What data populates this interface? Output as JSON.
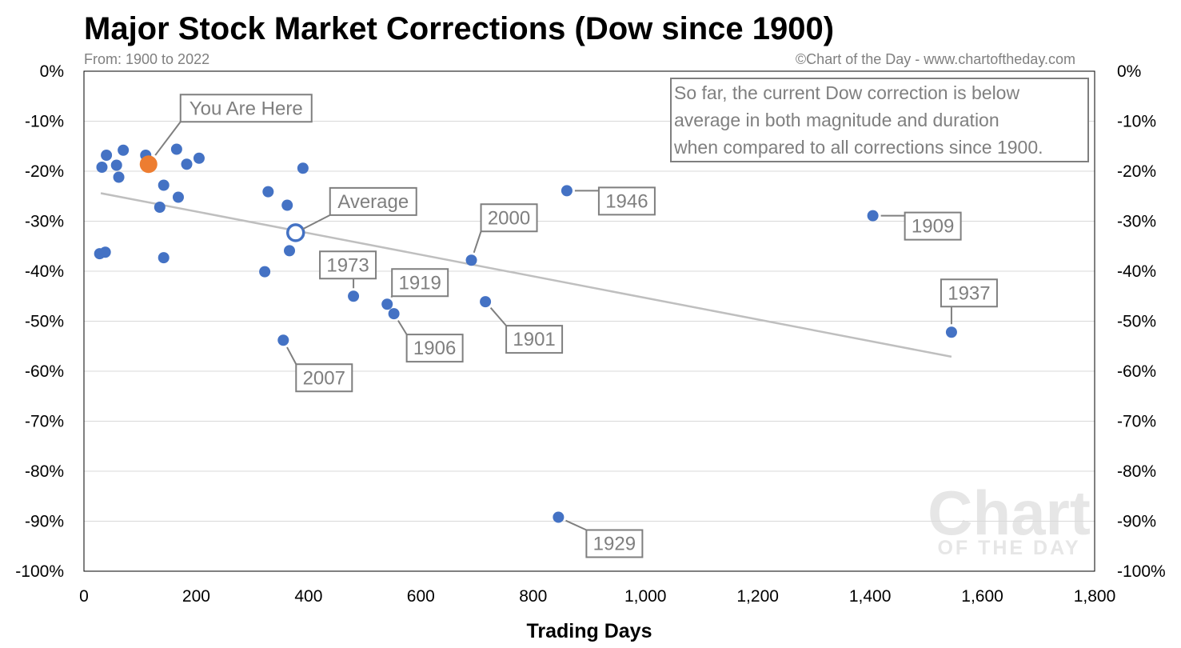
{
  "chart_data": {
    "type": "scatter",
    "title": "Major Stock Market Corrections (Dow since 1900)",
    "subtitle": "From: 1900 to 2022",
    "source": "©Chart of the Day - www.chartoftheday.com",
    "xlabel": "Trading Days",
    "ylabel": "",
    "xlim": [
      0,
      1800
    ],
    "ylim": [
      -100,
      0
    ],
    "x_ticks": [
      0,
      200,
      400,
      600,
      800,
      1000,
      1200,
      1400,
      1600,
      1800
    ],
    "x_tick_labels": [
      "0",
      "200",
      "400",
      "600",
      "800",
      "1,000",
      "1,200",
      "1,400",
      "1,600",
      "1,800"
    ],
    "y_ticks": [
      0,
      -10,
      -20,
      -30,
      -40,
      -50,
      -60,
      -70,
      -80,
      -90,
      -100
    ],
    "y_tick_labels": [
      "0%",
      "-10%",
      "-20%",
      "-30%",
      "-40%",
      "-50%",
      "-60%",
      "-70%",
      "-80%",
      "-90%",
      "-100%"
    ],
    "grid": "horizontal",
    "colors": {
      "points": "#4472c4",
      "current": "#ed7d31",
      "trendline": "#bfbfbf",
      "callout": "#7f7f7f"
    },
    "points": [
      {
        "x": 28,
        "y": -36.5
      },
      {
        "x": 32,
        "y": -19.2
      },
      {
        "x": 38,
        "y": -36.2
      },
      {
        "x": 40,
        "y": -16.8
      },
      {
        "x": 58,
        "y": -18.8
      },
      {
        "x": 62,
        "y": -21.2
      },
      {
        "x": 70,
        "y": -15.8
      },
      {
        "x": 110,
        "y": -16.8
      },
      {
        "x": 135,
        "y": -27.2
      },
      {
        "x": 142,
        "y": -22.8
      },
      {
        "x": 142,
        "y": -37.3
      },
      {
        "x": 165,
        "y": -15.6
      },
      {
        "x": 168,
        "y": -25.2
      },
      {
        "x": 183,
        "y": -18.6
      },
      {
        "x": 205,
        "y": -17.4
      },
      {
        "x": 322,
        "y": -40.1
      },
      {
        "x": 328,
        "y": -24.1
      },
      {
        "x": 355,
        "y": -53.8,
        "label": "2007"
      },
      {
        "x": 362,
        "y": -26.8
      },
      {
        "x": 366,
        "y": -35.9
      },
      {
        "x": 390,
        "y": -19.4
      },
      {
        "x": 480,
        "y": -45.0,
        "label": "1973"
      },
      {
        "x": 540,
        "y": -46.6,
        "label": "1919"
      },
      {
        "x": 552,
        "y": -48.5,
        "label": "1906"
      },
      {
        "x": 690,
        "y": -37.8,
        "label": "2000"
      },
      {
        "x": 715,
        "y": -46.1,
        "label": "1901"
      },
      {
        "x": 845,
        "y": -89.2,
        "label": "1929"
      },
      {
        "x": 860,
        "y": -23.9,
        "label": "1946"
      },
      {
        "x": 1405,
        "y": -28.9,
        "label": "1909"
      },
      {
        "x": 1545,
        "y": -52.2,
        "label": "1937"
      }
    ],
    "current": {
      "x": 115,
      "y": -18.6,
      "label": "You Are Here"
    },
    "average": {
      "x": 377,
      "y": -32.3,
      "label": "Average"
    },
    "trendline": {
      "x": [
        30,
        1545
      ],
      "y": [
        -24.4,
        -57.1
      ]
    },
    "annotation": "So far, the current Dow correction is below average in both magnitude and duration when compared to all corrections since 1900.",
    "annotation_lines": [
      "So far, the current Dow correction is below",
      "average in both magnitude and duration",
      "when compared to all corrections since 1900."
    ],
    "watermark": [
      "Chart",
      "OF THE DAY"
    ]
  }
}
